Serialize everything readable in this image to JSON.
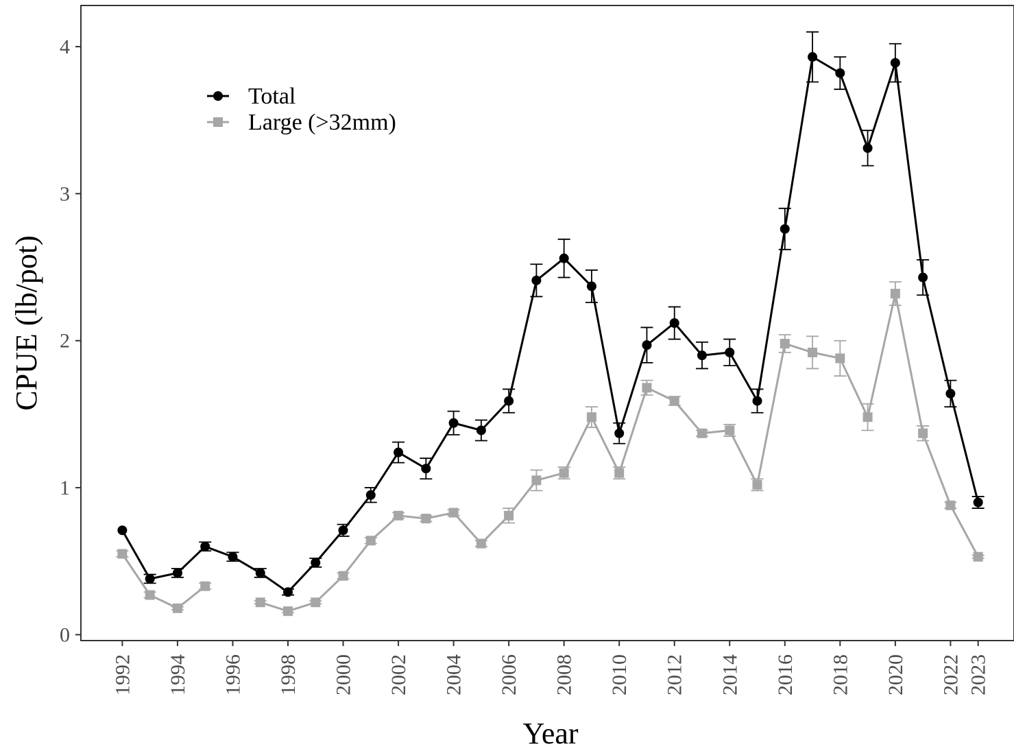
{
  "chart_data": {
    "type": "line",
    "title": "",
    "xlabel": "Year",
    "ylabel": "CPUE (lb/pot)",
    "xlim": [
      1990.5,
      2024.3
    ],
    "ylim": [
      -0.04,
      4.28
    ],
    "x_ticks": [
      "1992",
      "1994",
      "1996",
      "1998",
      "2000",
      "2002",
      "2004",
      "2006",
      "2008",
      "2010",
      "2012",
      "2014",
      "2016",
      "2018",
      "2020",
      "2022",
      "2023"
    ],
    "y_ticks": [
      "0",
      "1",
      "2",
      "3",
      "4"
    ],
    "grid": false,
    "legend_position": "top-left",
    "series": [
      {
        "name": "Total",
        "color": "#000000",
        "marker": "circle",
        "points": [
          {
            "x": 1992,
            "y": 0.71,
            "err": 0.0
          },
          {
            "x": 1993,
            "y": 0.38,
            "err": 0.03
          },
          {
            "x": 1994,
            "y": 0.42,
            "err": 0.03
          },
          {
            "x": 1995,
            "y": 0.6,
            "err": 0.03
          },
          {
            "x": 1996,
            "y": 0.53,
            "err": 0.03
          },
          {
            "x": 1997,
            "y": 0.42,
            "err": 0.03
          },
          {
            "x": 1998,
            "y": 0.29,
            "err": 0.02
          },
          {
            "x": 1999,
            "y": 0.49,
            "err": 0.03
          },
          {
            "x": 2000,
            "y": 0.71,
            "err": 0.04
          },
          {
            "x": 2001,
            "y": 0.95,
            "err": 0.05
          },
          {
            "x": 2002,
            "y": 1.24,
            "err": 0.07
          },
          {
            "x": 2003,
            "y": 1.13,
            "err": 0.07
          },
          {
            "x": 2004,
            "y": 1.44,
            "err": 0.08
          },
          {
            "x": 2005,
            "y": 1.39,
            "err": 0.07
          },
          {
            "x": 2006,
            "y": 1.59,
            "err": 0.08
          },
          {
            "x": 2007,
            "y": 2.41,
            "err": 0.11
          },
          {
            "x": 2008,
            "y": 2.56,
            "err": 0.13
          },
          {
            "x": 2009,
            "y": 2.37,
            "err": 0.11
          },
          {
            "x": 2010,
            "y": 1.37,
            "err": 0.07
          },
          {
            "x": 2011,
            "y": 1.97,
            "err": 0.12
          },
          {
            "x": 2012,
            "y": 2.12,
            "err": 0.11
          },
          {
            "x": 2013,
            "y": 1.9,
            "err": 0.09
          },
          {
            "x": 2014,
            "y": 1.92,
            "err": 0.09
          },
          {
            "x": 2015,
            "y": 1.59,
            "err": 0.08
          },
          {
            "x": 2016,
            "y": 2.76,
            "err": 0.14
          },
          {
            "x": 2017,
            "y": 3.93,
            "err": 0.17
          },
          {
            "x": 2018,
            "y": 3.82,
            "err": 0.11
          },
          {
            "x": 2019,
            "y": 3.31,
            "err": 0.12
          },
          {
            "x": 2020,
            "y": 3.89,
            "err": 0.13
          },
          {
            "x": 2021,
            "y": 2.43,
            "err": 0.12
          },
          {
            "x": 2022,
            "y": 1.64,
            "err": 0.09
          },
          {
            "x": 2023,
            "y": 0.9,
            "err": 0.04
          }
        ]
      },
      {
        "name": "Large (>32mm)",
        "color": "#a6a6a6",
        "marker": "square",
        "points": [
          {
            "x": 1992,
            "y": 0.55,
            "err": 0.02
          },
          {
            "x": 1993,
            "y": 0.27,
            "err": 0.02
          },
          {
            "x": 1994,
            "y": 0.18,
            "err": 0.01
          },
          {
            "x": 1995,
            "y": 0.33,
            "err": 0.02
          },
          {
            "x": 1996,
            "y": null,
            "err": 0
          },
          {
            "x": 1997,
            "y": 0.22,
            "err": 0.01
          },
          {
            "x": 1998,
            "y": 0.16,
            "err": 0.01
          },
          {
            "x": 1999,
            "y": 0.22,
            "err": 0.01
          },
          {
            "x": 2000,
            "y": 0.4,
            "err": 0.02
          },
          {
            "x": 2001,
            "y": 0.64,
            "err": 0.02
          },
          {
            "x": 2002,
            "y": 0.81,
            "err": 0.02
          },
          {
            "x": 2003,
            "y": 0.79,
            "err": 0.02
          },
          {
            "x": 2004,
            "y": 0.83,
            "err": 0.02
          },
          {
            "x": 2005,
            "y": 0.62,
            "err": 0.02
          },
          {
            "x": 2006,
            "y": 0.81,
            "err": 0.05
          },
          {
            "x": 2007,
            "y": 1.05,
            "err": 0.07
          },
          {
            "x": 2008,
            "y": 1.1,
            "err": 0.04
          },
          {
            "x": 2009,
            "y": 1.48,
            "err": 0.07
          },
          {
            "x": 2010,
            "y": 1.1,
            "err": 0.04
          },
          {
            "x": 2011,
            "y": 1.68,
            "err": 0.05
          },
          {
            "x": 2012,
            "y": 1.59,
            "err": 0.03
          },
          {
            "x": 2013,
            "y": 1.37,
            "err": 0.02
          },
          {
            "x": 2014,
            "y": 1.39,
            "err": 0.04
          },
          {
            "x": 2015,
            "y": 1.02,
            "err": 0.04
          },
          {
            "x": 2016,
            "y": 1.98,
            "err": 0.06
          },
          {
            "x": 2017,
            "y": 1.92,
            "err": 0.11
          },
          {
            "x": 2018,
            "y": 1.88,
            "err": 0.12
          },
          {
            "x": 2019,
            "y": 1.48,
            "err": 0.09
          },
          {
            "x": 2020,
            "y": 2.32,
            "err": 0.08
          },
          {
            "x": 2021,
            "y": 1.37,
            "err": 0.05
          },
          {
            "x": 2022,
            "y": 0.88,
            "err": 0.02
          },
          {
            "x": 2023,
            "y": 0.53,
            "err": 0.01
          }
        ]
      }
    ]
  }
}
